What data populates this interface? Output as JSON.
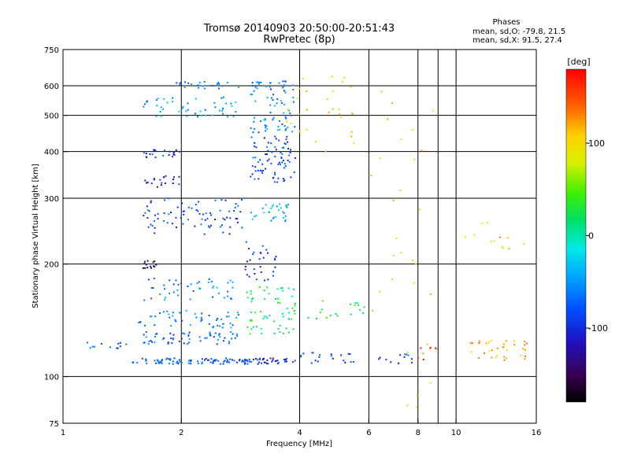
{
  "title_line1": "Tromsø 20140903 20:50:00-20:51:43",
  "title_line2": "RwPretec (8p)",
  "stats": {
    "heading": "Phases",
    "line_o": "mean, sd,O: -79.8, 21.5",
    "line_x": "mean, sd,X:  91.5, 27.4"
  },
  "colorbar": {
    "unit_label": "[deg]",
    "tick_labels": [
      "100",
      "0",
      "-100"
    ],
    "ticks": [
      100,
      0,
      -100
    ],
    "range": [
      -180,
      180
    ]
  },
  "chart_data": {
    "type": "scatter",
    "xlabel": "Frequency [MHz]",
    "ylabel": "Stationary phase Virtual Height [km]",
    "x_scale": "log",
    "y_scale": "log",
    "xlim": [
      1,
      16
    ],
    "ylim": [
      75,
      750
    ],
    "x_ticks": [
      1,
      2,
      4,
      6,
      8,
      10,
      16
    ],
    "x_tick_labels": [
      "1",
      "2",
      "4",
      "6",
      "8",
      "10",
      "16"
    ],
    "y_ticks": [
      75,
      100,
      200,
      300,
      400,
      500,
      600,
      750
    ],
    "y_tick_labels": [
      "75",
      "100",
      "200",
      "300",
      "400",
      "500",
      "600",
      "750"
    ],
    "x_gridlines": [
      2,
      4,
      6,
      8,
      9,
      10
    ],
    "y_gridlines": [
      100,
      200,
      300,
      400,
      500,
      600
    ],
    "grid": true,
    "color_variable": "phase [deg]",
    "clusters": [
      {
        "x": [
          1.1,
          1.45
        ],
        "y": [
          118,
          124
        ],
        "phase": -75,
        "n": 12
      },
      {
        "x": [
          1.5,
          3.0
        ],
        "y": [
          108,
          112
        ],
        "phase": -75,
        "n": 90
      },
      {
        "x": [
          1.6,
          2.8
        ],
        "y": [
          122,
          132
        ],
        "phase": -70,
        "n": 60
      },
      {
        "x": [
          1.55,
          2.8
        ],
        "y": [
          135,
          150
        ],
        "phase": -60,
        "n": 50
      },
      {
        "x": [
          1.6,
          2.8
        ],
        "y": [
          160,
          185
        ],
        "phase": -55,
        "n": 45
      },
      {
        "x": [
          1.6,
          1.75
        ],
        "y": [
          195,
          205
        ],
        "phase": -140,
        "n": 14
      },
      {
        "x": [
          1.6,
          2.9
        ],
        "y": [
          240,
          300
        ],
        "phase": -85,
        "n": 80
      },
      {
        "x": [
          1.6,
          2.0
        ],
        "y": [
          320,
          345
        ],
        "phase": -110,
        "n": 20
      },
      {
        "x": [
          1.6,
          2.0
        ],
        "y": [
          385,
          405
        ],
        "phase": -95,
        "n": 20
      },
      {
        "x": [
          1.6,
          2.8
        ],
        "y": [
          495,
          560
        ],
        "phase": -45,
        "n": 50
      },
      {
        "x": [
          1.9,
          2.8
        ],
        "y": [
          590,
          615
        ],
        "phase": -60,
        "n": 25
      },
      {
        "x": [
          2.9,
          3.9
        ],
        "y": [
          108,
          112
        ],
        "phase": -100,
        "n": 40
      },
      {
        "x": [
          2.9,
          3.9
        ],
        "y": [
          130,
          175
        ],
        "phase": 20,
        "n": 60
      },
      {
        "x": [
          2.9,
          3.5
        ],
        "y": [
          180,
          230
        ],
        "phase": -95,
        "n": 30
      },
      {
        "x": [
          3.0,
          3.8
        ],
        "y": [
          260,
          290
        ],
        "phase": -40,
        "n": 30
      },
      {
        "x": [
          3.0,
          3.9
        ],
        "y": [
          330,
          440
        ],
        "phase": -85,
        "n": 80
      },
      {
        "x": [
          3.0,
          3.9
        ],
        "y": [
          450,
          620
        ],
        "phase": -60,
        "n": 80
      },
      {
        "x": [
          3.6,
          5.5
        ],
        "y": [
          400,
          640
        ],
        "phase": 95,
        "n": 30
      },
      {
        "x": [
          3.9,
          5.6
        ],
        "y": [
          108,
          116
        ],
        "phase": -80,
        "n": 20
      },
      {
        "x": [
          3.7,
          5.9
        ],
        "y": [
          135,
          160
        ],
        "phase": 30,
        "n": 20
      },
      {
        "x": [
          6.2,
          8.0
        ],
        "y": [
          108,
          115
        ],
        "phase": -90,
        "n": 12
      },
      {
        "x": [
          6.0,
          8.9
        ],
        "y": [
          80,
          620
        ],
        "phase": 90,
        "n": 30
      },
      {
        "x": [
          8.0,
          9.0
        ],
        "y": [
          110,
          120
        ],
        "phase": 150,
        "n": 8
      },
      {
        "x": [
          10.4,
          15.2
        ],
        "y": [
          110,
          125
        ],
        "phase": 120,
        "n": 35
      },
      {
        "x": [
          10.5,
          15.0
        ],
        "y": [
          220,
          260
        ],
        "phase": 110,
        "n": 12
      }
    ]
  }
}
